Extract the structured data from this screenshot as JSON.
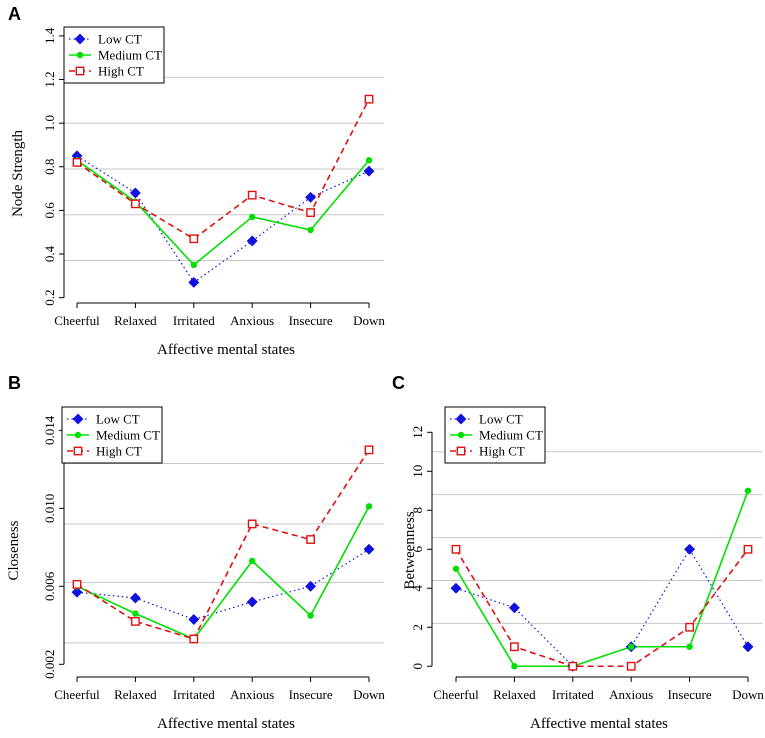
{
  "colors": {
    "low": "#1010e0",
    "medium": "#00e000",
    "high": "#e01010",
    "grid": "#c8c8c8"
  },
  "legend": [
    {
      "key": "low",
      "label": "Low CT"
    },
    {
      "key": "medium",
      "label": "Medium CT"
    },
    {
      "key": "high",
      "label": "High CT"
    }
  ],
  "chart_data": [
    {
      "panel": "A",
      "type": "line",
      "categories": [
        "Cheerful",
        "Relaxed",
        "Irritated",
        "Anxious",
        "Insecure",
        "Down"
      ],
      "xlabel": "Affective mental states",
      "ylabel": "Node Strength",
      "ylim": [
        0.18,
        1.45
      ],
      "yticks": [
        0.2,
        0.4,
        0.6,
        0.8,
        1.0,
        1.2,
        1.4
      ],
      "ytick_labels": [
        "0.2",
        "0.4",
        "0.6",
        "0.8",
        "1.0",
        "1.2",
        "1.4"
      ],
      "gridlines": [
        0.37,
        0.58,
        0.79,
        1.0,
        1.21
      ],
      "legend_position": "top-left",
      "series": [
        {
          "name": "Low CT",
          "key": "low",
          "values": [
            0.85,
            0.68,
            0.27,
            0.46,
            0.66,
            0.78
          ]
        },
        {
          "name": "Medium CT",
          "key": "medium",
          "values": [
            0.83,
            0.64,
            0.35,
            0.57,
            0.51,
            0.83
          ]
        },
        {
          "name": "High CT",
          "key": "high",
          "values": [
            0.82,
            0.63,
            0.47,
            0.67,
            0.59,
            1.11
          ]
        }
      ]
    },
    {
      "panel": "B",
      "type": "line",
      "categories": [
        "Cheerful",
        "Relaxed",
        "Irritated",
        "Anxious",
        "Insecure",
        "Down"
      ],
      "xlabel": "Affective mental states",
      "ylabel": "Closeness",
      "ylim": [
        0.0014,
        0.0153
      ],
      "yticks": [
        0.002,
        0.006,
        0.01,
        0.014
      ],
      "ytick_labels": [
        "0.002",
        "0.006",
        "0.010",
        "0.014"
      ],
      "gridlines": [
        0.0031,
        0.0062,
        0.0092,
        0.0123
      ],
      "legend_position": "top-left",
      "series": [
        {
          "name": "Low CT",
          "key": "low",
          "values": [
            0.0057,
            0.0054,
            0.0043,
            0.0052,
            0.006,
            0.0079
          ]
        },
        {
          "name": "Medium CT",
          "key": "medium",
          "values": [
            0.006,
            0.0046,
            0.0033,
            0.0073,
            0.0045,
            0.0101
          ]
        },
        {
          "name": "High CT",
          "key": "high",
          "values": [
            0.0061,
            0.0042,
            0.0033,
            0.0092,
            0.0084,
            0.013
          ]
        }
      ]
    },
    {
      "panel": "C",
      "type": "line",
      "categories": [
        "Cheerful",
        "Relaxed",
        "Irritated",
        "Anxious",
        "Insecure",
        "Down"
      ],
      "xlabel": "Affective mental states",
      "ylabel": "Betweenness",
      "ylim": [
        -0.5,
        13.4
      ],
      "yticks": [
        0,
        2,
        4,
        6,
        8,
        10,
        12
      ],
      "ytick_labels": [
        "0",
        "2",
        "4",
        "6",
        "8",
        "10",
        "12"
      ],
      "gridlines": [
        2.2,
        4.4,
        6.6,
        8.8,
        11.0
      ],
      "legend_position": "top-left",
      "series": [
        {
          "name": "Low CT",
          "key": "low",
          "values": [
            4,
            3,
            0,
            1,
            6,
            1
          ]
        },
        {
          "name": "Medium CT",
          "key": "medium",
          "values": [
            5,
            0,
            0,
            1,
            1,
            9
          ]
        },
        {
          "name": "High CT",
          "key": "high",
          "values": [
            6,
            1,
            0,
            0,
            2,
            6
          ]
        }
      ]
    }
  ]
}
